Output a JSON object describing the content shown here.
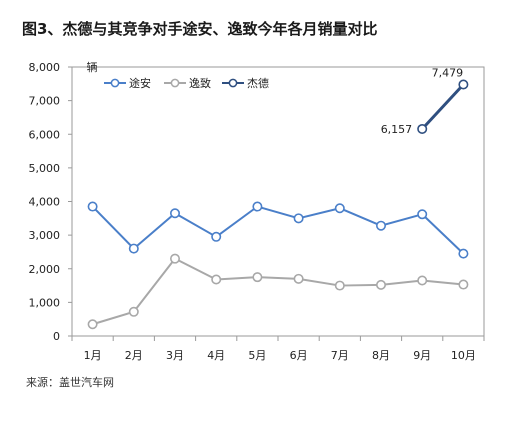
{
  "title": "图3、杰德与其竞争对手途安、逸致今年各月销量对比",
  "source": "来源：盖世汽车网",
  "chart_data": {
    "type": "line",
    "title": "图3、杰德与其竞争对手途安、逸致今年各月销量对比",
    "categories": [
      "1月",
      "2月",
      "3月",
      "4月",
      "5月",
      "6月",
      "7月",
      "8月",
      "9月",
      "10月"
    ],
    "ylabel": "辆",
    "ylim": [
      0,
      8000
    ],
    "yticks": [
      0,
      1000,
      2000,
      3000,
      4000,
      5000,
      6000,
      7000,
      8000
    ],
    "ytick_labels": [
      "0",
      "1,000",
      "2,000",
      "3,000",
      "4,000",
      "5,000",
      "6,000",
      "7,000",
      "8,000"
    ],
    "grid": false,
    "legend_position": "top-left",
    "series": [
      {
        "name": "途安",
        "color": "#4a7fc9",
        "values": [
          3850,
          2600,
          3650,
          2950,
          3850,
          3500,
          3800,
          3280,
          3620,
          2450
        ]
      },
      {
        "name": "逸致",
        "color": "#a8a8a8",
        "values": [
          350,
          720,
          2300,
          1680,
          1750,
          1700,
          1500,
          1520,
          1650,
          1530
        ]
      },
      {
        "name": "杰德",
        "color": "#2f4f80",
        "values": [
          null,
          null,
          null,
          null,
          null,
          null,
          null,
          null,
          6157,
          7479
        ]
      }
    ],
    "annotations": [
      {
        "series": "杰德",
        "index": 8,
        "text": "6,157"
      },
      {
        "series": "杰德",
        "index": 9,
        "text": "7,479"
      }
    ]
  }
}
